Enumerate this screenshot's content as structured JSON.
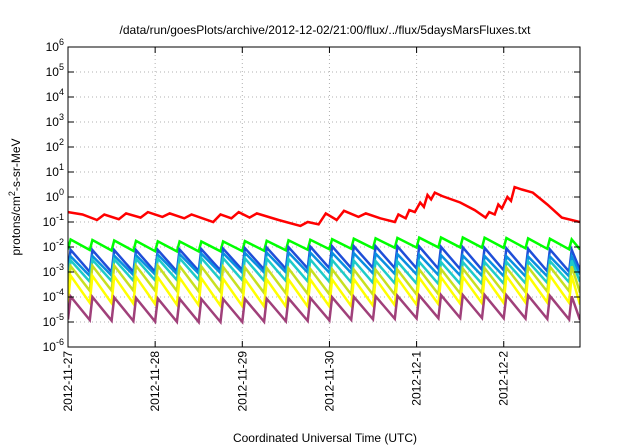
{
  "chart_data": {
    "type": "line",
    "title": "/data/run/goesPlots/archive/2012-12-02/21:00/flux/../flux/5daysMarsFluxes.txt",
    "xlabel": "Coordinated Universal Time (UTC)",
    "ylabel_base": "protons/cm",
    "ylabel_sup": "2",
    "ylabel_rest": "-s-sr-MeV",
    "y_scale": "log",
    "ylim": [
      1e-06,
      1000000.0
    ],
    "y_ticks": [
      {
        "base": "10",
        "exp": "-6"
      },
      {
        "base": "10",
        "exp": "-5"
      },
      {
        "base": "10",
        "exp": "-4"
      },
      {
        "base": "10",
        "exp": "-3"
      },
      {
        "base": "10",
        "exp": "-2"
      },
      {
        "base": "10",
        "exp": "-1"
      },
      {
        "base": "10",
        "exp": "0"
      },
      {
        "base": "10",
        "exp": "1"
      },
      {
        "base": "10",
        "exp": "2"
      },
      {
        "base": "10",
        "exp": "3"
      },
      {
        "base": "10",
        "exp": "4"
      },
      {
        "base": "10",
        "exp": "5"
      },
      {
        "base": "10",
        "exp": "6"
      }
    ],
    "y_tick_values": [
      -6,
      -5,
      -4,
      -3,
      -2,
      -1,
      0,
      1,
      2,
      3,
      4,
      5,
      6
    ],
    "x_start": "2012-11-27T00:00",
    "x_end": "2012-12-02T21:00",
    "x_ticks": [
      "2012-11-27",
      "2012-11-28",
      "2012-11-29",
      "2012-11-30",
      "2012-12-1",
      "2012-12-2"
    ],
    "x_tick_dates": [
      "2012-11-27T00:00",
      "2012-11-28T00:00",
      "2012-11-29T00:00",
      "2012-11-30T00:00",
      "2012-12-01T00:00",
      "2012-12-02T00:00"
    ],
    "grid": true,
    "legend": "none",
    "series": [
      {
        "color": "#ff0000",
        "style": "sawtooth",
        "points": [
          [
            "2012-11-27T00:00",
            0.25
          ],
          [
            "2012-11-27T04:00",
            0.2
          ],
          [
            "2012-11-27T08:00",
            0.12
          ],
          [
            "2012-11-27T10:00",
            0.2
          ],
          [
            "2012-11-27T14:00",
            0.13
          ],
          [
            "2012-11-27T16:00",
            0.22
          ],
          [
            "2012-11-27T20:00",
            0.15
          ],
          [
            "2012-11-27T22:00",
            0.25
          ],
          [
            "2012-11-28T02:00",
            0.16
          ],
          [
            "2012-11-28T04:00",
            0.22
          ],
          [
            "2012-11-28T08:00",
            0.14
          ],
          [
            "2012-11-28T10:00",
            0.2
          ],
          [
            "2012-11-28T16:00",
            0.1
          ],
          [
            "2012-11-28T18:00",
            0.2
          ],
          [
            "2012-11-28T21:00",
            0.14
          ],
          [
            "2012-11-28T23:00",
            0.25
          ],
          [
            "2012-11-29T02:00",
            0.15
          ],
          [
            "2012-11-29T04:00",
            0.22
          ],
          [
            "2012-11-29T10:00",
            0.12
          ],
          [
            "2012-11-29T16:00",
            0.07
          ],
          [
            "2012-11-29T18:00",
            0.1
          ],
          [
            "2012-11-29T21:00",
            0.08
          ],
          [
            "2012-11-29T23:00",
            0.22
          ],
          [
            "2012-11-30T02:00",
            0.12
          ],
          [
            "2012-11-30T04:00",
            0.28
          ],
          [
            "2012-11-30T08:00",
            0.16
          ],
          [
            "2012-11-30T10:00",
            0.22
          ],
          [
            "2012-11-30T14:00",
            0.14
          ],
          [
            "2012-11-30T18:00",
            0.1
          ],
          [
            "2012-11-30T19:00",
            0.2
          ],
          [
            "2012-11-30T21:00",
            0.14
          ],
          [
            "2012-11-30T22:00",
            0.3
          ],
          [
            "2012-11-30T23:30",
            0.25
          ],
          [
            "2012-12-01T01:00",
            0.6
          ],
          [
            "2012-12-01T02:00",
            0.4
          ],
          [
            "2012-12-01T03:00",
            1.2
          ],
          [
            "2012-12-01T04:00",
            0.8
          ],
          [
            "2012-12-01T05:00",
            1.5
          ],
          [
            "2012-12-01T07:00",
            1.1
          ],
          [
            "2012-12-01T12:00",
            0.6
          ],
          [
            "2012-12-01T16:00",
            0.3
          ],
          [
            "2012-12-01T19:00",
            0.15
          ],
          [
            "2012-12-01T20:00",
            0.25
          ],
          [
            "2012-12-01T21:30",
            0.2
          ],
          [
            "2012-12-01T22:30",
            0.5
          ],
          [
            "2012-12-01T23:30",
            0.35
          ],
          [
            "2012-12-02T01:00",
            1.0
          ],
          [
            "2012-12-02T02:00",
            0.7
          ],
          [
            "2012-12-02T03:00",
            2.5
          ],
          [
            "2012-12-02T05:00",
            2.0
          ],
          [
            "2012-12-02T08:00",
            1.5
          ],
          [
            "2012-12-02T12:00",
            0.5
          ],
          [
            "2012-12-02T16:00",
            0.15
          ],
          [
            "2012-12-02T21:00",
            0.1
          ]
        ]
      },
      {
        "color": "#00ff00",
        "style": "sawtooth",
        "period_hours": 6,
        "peak": 0.02,
        "trough": 0.008
      },
      {
        "color": "#1f4ed8",
        "style": "sawtooth",
        "period_hours": 6,
        "peak": 0.009,
        "trough": 0.0012
      },
      {
        "color": "#0a8fe0",
        "style": "sawtooth",
        "period_hours": 6,
        "peak": 0.005,
        "trough": 0.0008
      },
      {
        "color": "#1ecbc8",
        "style": "sawtooth",
        "period_hours": 6,
        "peak": 0.003,
        "trough": 0.0004
      },
      {
        "color": "#c8e020",
        "style": "sawtooth",
        "period_hours": 6,
        "peak": 0.0015,
        "trough": 0.00015
      },
      {
        "color": "#ffff00",
        "style": "sawtooth",
        "period_hours": 6,
        "peak": 0.0006,
        "trough": 5e-05
      },
      {
        "color": "#a0407a",
        "style": "sawtooth",
        "period_hours": 6,
        "peak": 0.0001,
        "trough": 1.2e-05
      }
    ]
  }
}
